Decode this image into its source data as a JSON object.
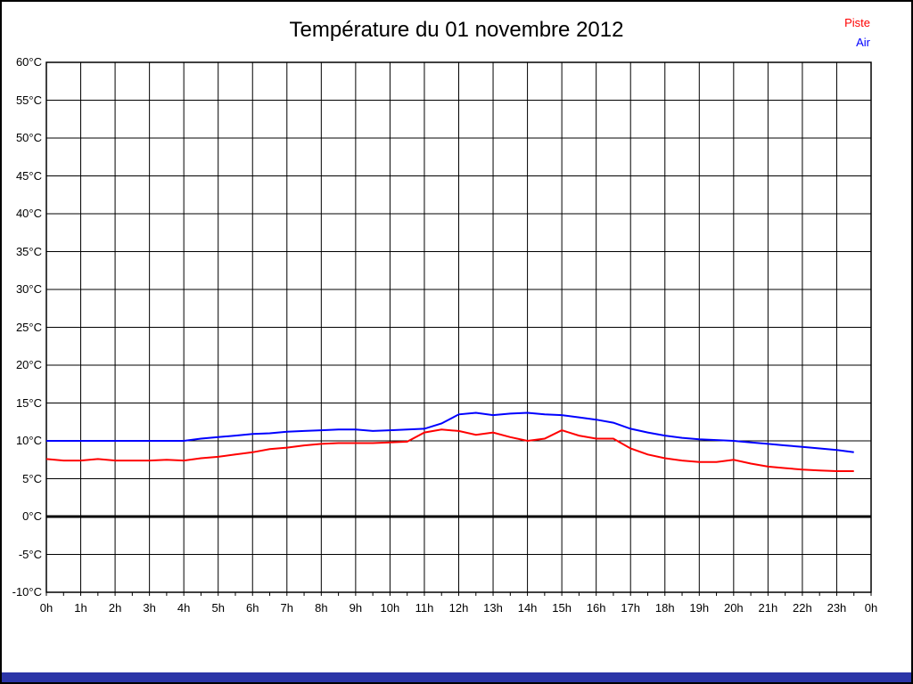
{
  "title": "Température du 01 novembre 2012",
  "legend": [
    {
      "label": "Piste",
      "color": "#FF0000"
    },
    {
      "label": "Air",
      "color": "#0000FF"
    }
  ],
  "colors": {
    "background": "#FFFFFF",
    "frame": "#000000",
    "grid": "#000000",
    "zero_line": "#000000",
    "bottom_bar": "#2B35A8"
  },
  "chart_data": {
    "type": "line",
    "title": "Température du 01 novembre 2012",
    "xlabel": "",
    "ylabel": "",
    "xlim": [
      0,
      24
    ],
    "ylim": [
      -10,
      60
    ],
    "grid": true,
    "legend_position": "top-right",
    "zero_line_bold": true,
    "yticks": [
      "60°C",
      "55°C",
      "50°C",
      "45°C",
      "40°C",
      "35°C",
      "30°C",
      "25°C",
      "20°C",
      "15°C",
      "10°C",
      "5°C",
      "0°C",
      "-5°C",
      "-10°C"
    ],
    "ytick_values": [
      60,
      55,
      50,
      45,
      40,
      35,
      30,
      25,
      20,
      15,
      10,
      5,
      0,
      -5,
      -10
    ],
    "xticks": [
      "0h",
      "1h",
      "2h",
      "3h",
      "4h",
      "5h",
      "6h",
      "7h",
      "8h",
      "9h",
      "10h",
      "11h",
      "12h",
      "13h",
      "14h",
      "15h",
      "16h",
      "17h",
      "18h",
      "19h",
      "20h",
      "21h",
      "22h",
      "23h",
      "0h"
    ],
    "xtick_values": [
      0,
      1,
      2,
      3,
      4,
      5,
      6,
      7,
      8,
      9,
      10,
      11,
      12,
      13,
      14,
      15,
      16,
      17,
      18,
      19,
      20,
      21,
      22,
      23,
      24
    ],
    "x_unit": "hours",
    "x": [
      0,
      0.5,
      1,
      1.5,
      2,
      2.5,
      3,
      3.5,
      4,
      4.5,
      5,
      5.5,
      6,
      6.5,
      7,
      7.5,
      8,
      8.5,
      9,
      9.5,
      10,
      10.5,
      11,
      11.5,
      12,
      12.5,
      13,
      13.5,
      14,
      14.5,
      15,
      15.5,
      16,
      16.5,
      17,
      17.5,
      18,
      18.5,
      19,
      19.5,
      20,
      20.5,
      21,
      21.5,
      22,
      22.5,
      23,
      23.5
    ],
    "series": [
      {
        "name": "Piste",
        "color": "#FF0000",
        "values": [
          7.6,
          7.4,
          7.4,
          7.6,
          7.4,
          7.4,
          7.4,
          7.5,
          7.4,
          7.7,
          7.9,
          8.2,
          8.5,
          8.9,
          9.1,
          9.4,
          9.6,
          9.7,
          9.7,
          9.7,
          9.8,
          9.9,
          11.1,
          11.5,
          11.3,
          10.8,
          11.1,
          10.5,
          10.0,
          10.3,
          11.4,
          10.7,
          10.3,
          10.3,
          9.0,
          8.2,
          7.7,
          7.4,
          7.2,
          7.2,
          7.5,
          7.0,
          6.6,
          6.4,
          6.2,
          6.1,
          6.0,
          6.0
        ]
      },
      {
        "name": "Air",
        "color": "#0000FF",
        "values": [
          10.0,
          10.0,
          10.0,
          10.0,
          10.0,
          10.0,
          10.0,
          10.0,
          10.0,
          10.3,
          10.5,
          10.7,
          10.9,
          11.0,
          11.2,
          11.3,
          11.4,
          11.5,
          11.5,
          11.3,
          11.4,
          11.5,
          11.6,
          12.3,
          13.5,
          13.7,
          13.4,
          13.6,
          13.7,
          13.5,
          13.4,
          13.1,
          12.8,
          12.4,
          11.6,
          11.1,
          10.7,
          10.4,
          10.2,
          10.1,
          10.0,
          9.8,
          9.6,
          9.4,
          9.2,
          9.0,
          8.8,
          8.5
        ]
      }
    ]
  }
}
